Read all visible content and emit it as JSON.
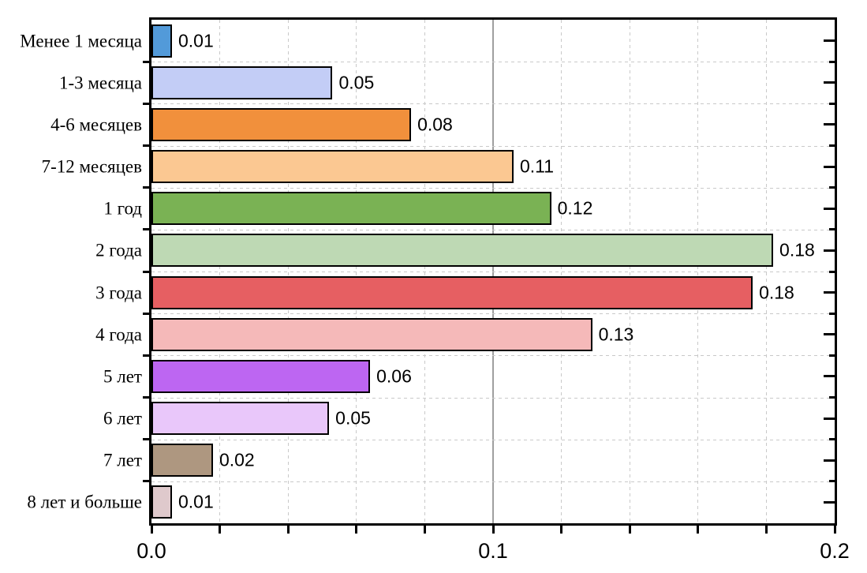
{
  "chart_data": {
    "type": "bar",
    "orientation": "horizontal",
    "title": "",
    "xlabel": "",
    "ylabel": "",
    "legend_position": "none",
    "xlim": [
      0,
      0.2
    ],
    "x_minor_tick_step": 0.02,
    "x_major_ticks": [
      {
        "value": 0.0,
        "label": "0.0"
      },
      {
        "value": 0.1,
        "label": "0.1"
      },
      {
        "value": 0.2,
        "label": "0.2"
      }
    ],
    "grid": {
      "vertical_minor_style": "dashed",
      "vertical_major_style": "solid",
      "horizontal_style": "dashed-at-category-boundaries"
    },
    "categories": [
      "Менее 1 месяца",
      "1-3 месяца",
      "4-6 месяцев",
      "7-12 месяцев",
      "1 год",
      "2 года",
      "3 года",
      "4 года",
      "5 лет",
      "6 лет",
      "7 лет",
      "8 лет и больше"
    ],
    "values": [
      0.01,
      0.05,
      0.08,
      0.11,
      0.12,
      0.18,
      0.18,
      0.13,
      0.06,
      0.05,
      0.02,
      0.01
    ],
    "value_labels": [
      "0.01",
      "0.05",
      "0.08",
      "0.11",
      "0.12",
      "0.18",
      "0.18",
      "0.13",
      "0.06",
      "0.05",
      "0.02",
      "0.01"
    ],
    "plotted_values": [
      0.006,
      0.053,
      0.076,
      0.106,
      0.117,
      0.182,
      0.176,
      0.129,
      0.064,
      0.052,
      0.018,
      0.006
    ],
    "bar_colors": [
      "#529ad9",
      "#c3cdf6",
      "#f1903c",
      "#fbc892",
      "#7ab254",
      "#bed9b4",
      "#e65f62",
      "#f5b9b9",
      "#bd66f2",
      "#e9c7fa",
      "#ae9780",
      "#dfc9cc"
    ],
    "colors": {
      "bar_border": "#000000",
      "axis": "#000000",
      "grid_minor": "#c9c9c9",
      "grid_major": "#9f9f9f",
      "text": "#000000",
      "background": "#ffffff"
    }
  }
}
